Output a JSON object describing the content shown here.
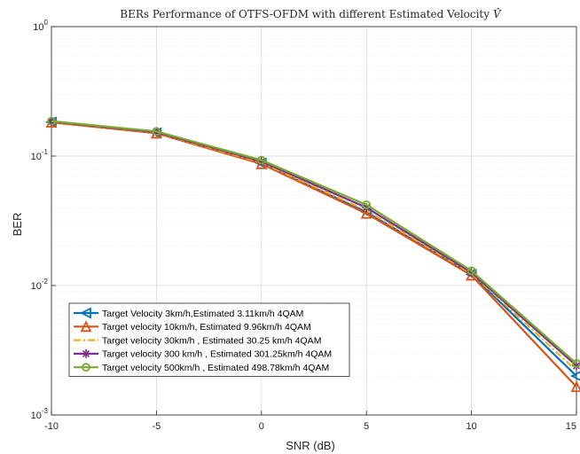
{
  "chart_data": {
    "type": "line",
    "title": "BERs Performance of OTFS-OFDM with different Estimated Velocity",
    "title_symbol": "V̂",
    "xlabel": "SNR (dB)",
    "ylabel": "BER",
    "xlim": [
      -10,
      15
    ],
    "ylim": [
      0.001,
      1
    ],
    "yscale": "log",
    "grid": true,
    "x": [
      -10,
      -5,
      0,
      5,
      10,
      15
    ],
    "x_ticks": [
      "-10",
      "-5",
      "0",
      "5",
      "10",
      "15"
    ],
    "y_ticks": [
      {
        "value": 1,
        "base": "10",
        "exp": "0"
      },
      {
        "value": 0.1,
        "base": "10",
        "exp": "-1"
      },
      {
        "value": 0.01,
        "base": "10",
        "exp": "-2"
      },
      {
        "value": 0.001,
        "base": "10",
        "exp": "-3"
      }
    ],
    "legend_position": "bottom-left",
    "series": [
      {
        "name": "Target Velocity 3km/h,Estimated 3.11km/h 4QAM",
        "color": "#0072BD",
        "marker": "triangle-left",
        "dash": "solid",
        "values": [
          0.183,
          0.151,
          0.088,
          0.037,
          0.0122,
          0.002
        ]
      },
      {
        "name": "Target velocity 10km/h, Estimated 9.96km/h 4QAM",
        "color": "#D95319",
        "marker": "triangle-up",
        "dash": "solid",
        "values": [
          0.182,
          0.15,
          0.087,
          0.036,
          0.012,
          0.00165
        ]
      },
      {
        "name": "Target velocity 30km/h , Estimated 30.25 km/h 4QAM",
        "color": "#EDB120",
        "marker": "none",
        "dash": "dashdot",
        "values": [
          0.184,
          0.152,
          0.089,
          0.038,
          0.0124,
          0.0022
        ]
      },
      {
        "name": "Target velocity 300 km/h , Estimated 301.25km/h 4QAM",
        "color": "#7E2F8E",
        "marker": "asterisk",
        "dash": "solid",
        "values": [
          0.185,
          0.153,
          0.091,
          0.04,
          0.0126,
          0.0024
        ]
      },
      {
        "name": "Target velocity 500km/h , Estimated 498.78km/h 4QAM",
        "color": "#77AC30",
        "marker": "circle",
        "dash": "solid",
        "values": [
          0.186,
          0.155,
          0.093,
          0.042,
          0.013,
          0.0025
        ]
      }
    ]
  }
}
